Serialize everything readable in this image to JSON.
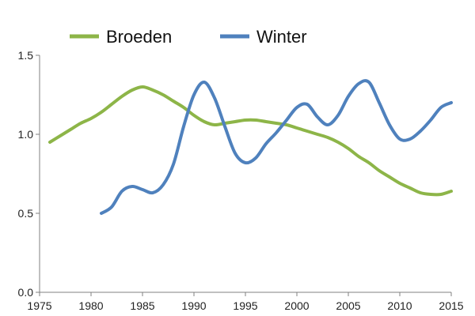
{
  "chart_data": {
    "type": "line",
    "title": "",
    "xlabel": "",
    "ylabel": "",
    "xlim": [
      1975,
      2015
    ],
    "ylim": [
      0,
      1.5
    ],
    "x_ticks": [
      "1975",
      "1980",
      "1985",
      "1990",
      "1995",
      "2000",
      "2005",
      "2010",
      "2015"
    ],
    "y_ticks": [
      "0.0",
      "0.5",
      "1.0",
      "1.5"
    ],
    "grid": false,
    "legend_position": "top",
    "series": [
      {
        "name": "Broeden",
        "color": "#8db548",
        "x": [
          1976,
          1977,
          1978,
          1979,
          1980,
          1981,
          1982,
          1983,
          1984,
          1985,
          1986,
          1987,
          1988,
          1989,
          1990,
          1991,
          1992,
          1993,
          1994,
          1995,
          1996,
          1997,
          1998,
          1999,
          2000,
          2001,
          2002,
          2003,
          2004,
          2005,
          2006,
          2007,
          2008,
          2009,
          2010,
          2011,
          2012,
          2013,
          2014,
          2015
        ],
        "values": [
          0.95,
          0.99,
          1.03,
          1.07,
          1.1,
          1.14,
          1.19,
          1.24,
          1.28,
          1.3,
          1.28,
          1.25,
          1.21,
          1.17,
          1.12,
          1.08,
          1.06,
          1.07,
          1.08,
          1.09,
          1.09,
          1.08,
          1.07,
          1.06,
          1.04,
          1.02,
          1.0,
          0.98,
          0.95,
          0.91,
          0.86,
          0.82,
          0.77,
          0.73,
          0.69,
          0.66,
          0.63,
          0.62,
          0.62,
          0.64
        ]
      },
      {
        "name": "Winter",
        "color": "#4f81bd",
        "x": [
          1981,
          1982,
          1983,
          1984,
          1985,
          1986,
          1987,
          1988,
          1989,
          1990,
          1991,
          1992,
          1993,
          1994,
          1995,
          1996,
          1997,
          1998,
          1999,
          2000,
          2001,
          2002,
          2003,
          2004,
          2005,
          2006,
          2007,
          2008,
          2009,
          2010,
          2011,
          2012,
          2013,
          2014,
          2015
        ],
        "values": [
          0.5,
          0.54,
          0.64,
          0.67,
          0.65,
          0.63,
          0.68,
          0.81,
          1.05,
          1.25,
          1.33,
          1.23,
          1.05,
          0.88,
          0.82,
          0.85,
          0.94,
          1.01,
          1.09,
          1.17,
          1.19,
          1.11,
          1.06,
          1.12,
          1.24,
          1.32,
          1.33,
          1.2,
          1.06,
          0.97,
          0.97,
          1.02,
          1.09,
          1.17,
          1.2
        ]
      }
    ]
  }
}
